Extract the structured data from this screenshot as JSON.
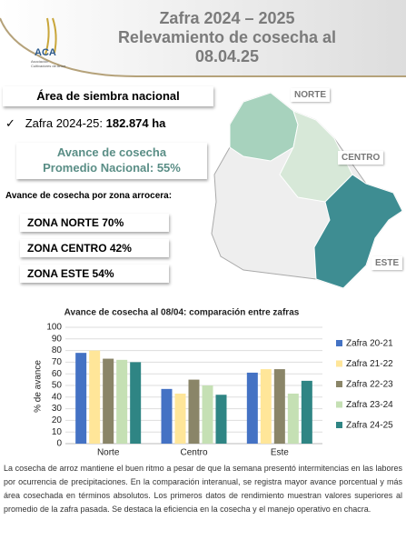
{
  "header": {
    "logo": "ACA",
    "logo_subtitle": "Asociación Cultivadores de Arroz",
    "title_lines": [
      "Zafra 2024 – 2025",
      "Relevamiento de cosecha al",
      "08.04.25"
    ]
  },
  "summary": {
    "heading": "Área de siembra nacional",
    "area_label": "Zafra 2024-25:",
    "area_value": "182.874 ha",
    "progress_lines": [
      "Avance de cosecha",
      "Promedio Nacional: 55%"
    ],
    "zones_heading": "Avance de cosecha por zona arrocera:",
    "zones": [
      "ZONA NORTE 70%",
      "ZONA CENTRO 42%",
      "ZONA ESTE 54%"
    ]
  },
  "map": {
    "labels": [
      "NORTE",
      "CENTRO",
      "ESTE"
    ]
  },
  "chart_data": {
    "type": "bar",
    "title": "Avance de cosecha al 08/04: comparación entre zafras",
    "y_label": "% de avance",
    "categories": [
      "Norte",
      "Centro",
      "Este"
    ],
    "series": [
      {
        "name": "Zafra 20-21",
        "color": "#4472c4",
        "values": [
          78,
          47,
          61
        ]
      },
      {
        "name": "Zafra 21-22",
        "color": "#ffe699",
        "values": [
          80,
          43,
          64
        ]
      },
      {
        "name": "Zafra 22-23",
        "color": "#8a8568",
        "values": [
          73,
          55,
          64
        ]
      },
      {
        "name": "Zafra 23-24",
        "color": "#c5e0b4",
        "values": [
          72,
          50,
          43
        ]
      },
      {
        "name": "Zafra 24-25",
        "color": "#2f8584",
        "values": [
          70,
          42,
          54
        ]
      }
    ],
    "ylim": [
      0,
      100
    ],
    "yticks": [
      0,
      10,
      20,
      30,
      40,
      50,
      60,
      70,
      80,
      90,
      100
    ],
    "grid": true
  },
  "footer": {
    "text": "La cosecha de arroz mantiene el buen ritmo a pesar de que la semana presentó intermitencias en las labores por ocurrencia de precipitaciones. En la comparación interanual, se registra mayor avance porcentual y más área cosechada en términos absolutos. Los primeros datos de rendimiento muestran valores superiores al promedio de la zafra pasada. Se destaca la eficiencia en la cosecha y el manejo operativo en chacra."
  }
}
